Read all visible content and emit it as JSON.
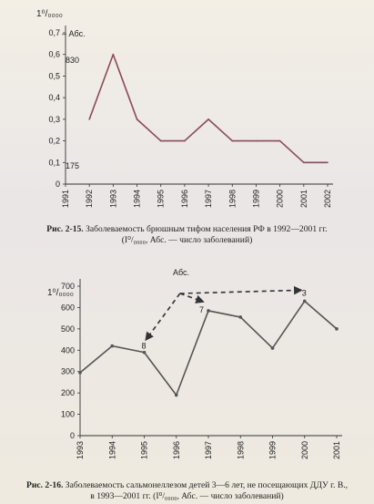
{
  "chart_data": [
    {
      "type": "line",
      "title": "",
      "y_unit_label": "1⁰/₀₀₀₀",
      "legend_abs": "– Абс.",
      "annotations": [
        "830",
        "175"
      ],
      "x": [
        "1991",
        "1992",
        "1993",
        "1994",
        "1995",
        "1996",
        "1997",
        "1998",
        "1999",
        "2000",
        "2001",
        "2002"
      ],
      "series": [
        {
          "values": [
            null,
            0.3,
            0.6,
            0.3,
            0.2,
            0.2,
            0.3,
            0.2,
            0.2,
            0.2,
            0.1,
            0.1
          ]
        }
      ],
      "yticks": [
        "0",
        "0,1",
        "0,2",
        "0,3",
        "0,4",
        "0,5",
        "0,6",
        "0,7"
      ],
      "ylim": [
        0,
        0.7
      ],
      "line_color": "#8a4a5a",
      "grid": false
    },
    {
      "type": "line",
      "title": "",
      "y_unit_label": "1⁰/₀₀₀₀",
      "annotation_abs": "Абс.",
      "point_labels": [
        "8",
        "7",
        "3"
      ],
      "x": [
        "1993",
        "1994",
        "1995",
        "1996",
        "1997",
        "1998",
        "1999",
        "2000",
        "2001"
      ],
      "series": [
        {
          "values": [
            295,
            420,
            390,
            190,
            585,
            555,
            410,
            630,
            500
          ]
        }
      ],
      "yticks": [
        "0",
        "100",
        "200",
        "300",
        "400",
        "500",
        "600",
        "700"
      ],
      "ylim": [
        0,
        700
      ],
      "line_color": "#555555",
      "grid": false
    }
  ],
  "captions": {
    "fig1_label": "Рис. 2-15.",
    "fig1_line1": " Заболеваемость брюшным тифом населения РФ в 1992—2001 гг.",
    "fig1_line2": "(I⁰/₀₀₀₀, Абс. — число заболеваний)",
    "fig2_label": "Рис. 2-16.",
    "fig2_line1": " Заболеваемость сальмонеллезом детей 3—6 лет, не посещающих ДДУ г. В.,",
    "fig2_line2": "в 1993—2001 гг. (I⁰/₀₀₀₀, Абс. — число заболеваний)"
  }
}
